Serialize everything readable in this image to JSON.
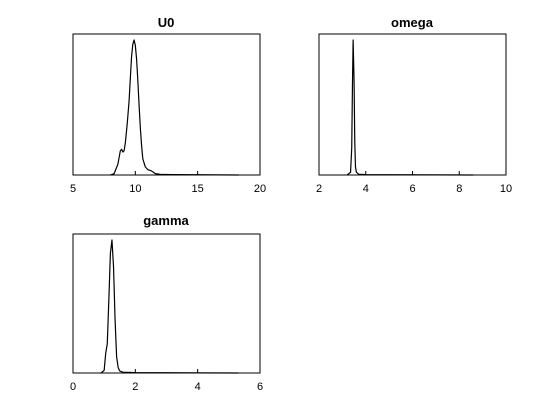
{
  "chart_data": [
    {
      "type": "line",
      "title": "U0",
      "xlabel": "",
      "ylabel": "",
      "xlim": [
        5,
        20
      ],
      "xticks": [
        "5",
        "10",
        "15",
        "20"
      ],
      "yticks": [],
      "grid": false,
      "series": [
        {
          "x": [
            8.0,
            8.3,
            8.6,
            8.8,
            8.9,
            9.0,
            9.1,
            9.2,
            9.35,
            9.5,
            9.6,
            9.7,
            9.8,
            9.9,
            10.0,
            10.1,
            10.2,
            10.3,
            10.4,
            10.5,
            10.6,
            10.8,
            11.0,
            11.3,
            11.6,
            12.0,
            13.0,
            15.0,
            18.3
          ],
          "y": [
            0.0,
            0.01,
            0.08,
            0.18,
            0.19,
            0.17,
            0.18,
            0.24,
            0.38,
            0.55,
            0.72,
            0.88,
            0.97,
            1.0,
            0.96,
            0.86,
            0.7,
            0.52,
            0.35,
            0.22,
            0.12,
            0.06,
            0.04,
            0.03,
            0.01,
            0.005,
            0.003,
            0.002,
            0.0
          ]
        }
      ]
    },
    {
      "type": "line",
      "title": "omega",
      "xlabel": "",
      "ylabel": "",
      "xlim": [
        2,
        10
      ],
      "xticks": [
        "2",
        "4",
        "6",
        "8",
        "10"
      ],
      "yticks": [],
      "grid": false,
      "series": [
        {
          "x": [
            3.2,
            3.35,
            3.4,
            3.43,
            3.46,
            3.5,
            3.53,
            3.56,
            3.6,
            3.7,
            4.0,
            5.0,
            7.0,
            8.6
          ],
          "y": [
            0.0,
            0.02,
            0.2,
            0.65,
            1.0,
            0.7,
            0.25,
            0.06,
            0.02,
            0.006,
            0.003,
            0.002,
            0.001,
            0.0
          ]
        }
      ]
    },
    {
      "type": "line",
      "title": "gamma",
      "xlabel": "",
      "ylabel": "",
      "xlim": [
        0,
        6
      ],
      "xticks": [
        "0",
        "2",
        "4",
        "6"
      ],
      "yticks": [],
      "grid": false,
      "series": [
        {
          "x": [
            0.9,
            1.0,
            1.05,
            1.1,
            1.15,
            1.2,
            1.25,
            1.3,
            1.35,
            1.4,
            1.45,
            1.5,
            1.6,
            2.0,
            3.0,
            4.0,
            5.3
          ],
          "y": [
            0.0,
            0.02,
            0.15,
            0.22,
            0.55,
            0.9,
            1.0,
            0.8,
            0.4,
            0.12,
            0.04,
            0.015,
            0.006,
            0.003,
            0.002,
            0.001,
            0.0
          ]
        }
      ]
    }
  ]
}
